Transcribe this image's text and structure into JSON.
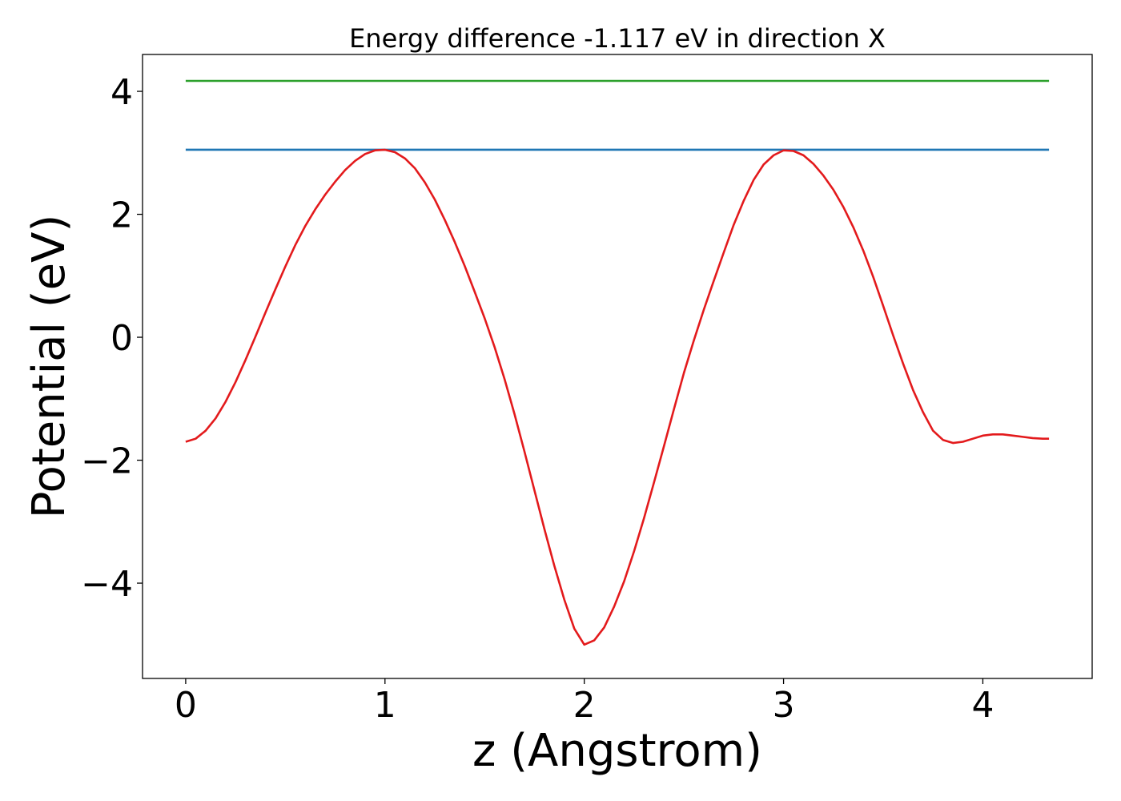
{
  "chart_data": {
    "type": "line",
    "title": "Energy difference -1.117 eV in direction X",
    "xlabel": "z (Angstrom)",
    "ylabel": "Potential (eV)",
    "xlim": [
      -0.2166,
      4.5486
    ],
    "ylim": [
      -5.55,
      4.6
    ],
    "xticks": [
      0,
      1,
      2,
      3,
      4
    ],
    "xtick_labels": [
      "0",
      "1",
      "2",
      "3",
      "4"
    ],
    "yticks": [
      -4,
      -2,
      0,
      2,
      4
    ],
    "ytick_labels": [
      "−4",
      "−2",
      "0",
      "2",
      "4"
    ],
    "grid": false,
    "legend": "none",
    "series": [
      {
        "color": "#2ca02c",
        "x": [
          0,
          4.332
        ],
        "y": [
          4.17,
          4.17
        ]
      },
      {
        "color": "#1f77b4",
        "x": [
          0,
          4.332
        ],
        "y": [
          3.05,
          3.05
        ]
      },
      {
        "color": "#e31a1c",
        "x": [
          0,
          0.05,
          0.1,
          0.15,
          0.2,
          0.25,
          0.3,
          0.35,
          0.4,
          0.45,
          0.5,
          0.55,
          0.6,
          0.65,
          0.7,
          0.75,
          0.8,
          0.85,
          0.9,
          0.95,
          1.0,
          1.05,
          1.1,
          1.15,
          1.2,
          1.25,
          1.3,
          1.35,
          1.4,
          1.45,
          1.5,
          1.55,
          1.6,
          1.65,
          1.7,
          1.75,
          1.8,
          1.85,
          1.9,
          1.95,
          2.0,
          2.05,
          2.1,
          2.15,
          2.2,
          2.25,
          2.3,
          2.35,
          2.4,
          2.45,
          2.5,
          2.55,
          2.6,
          2.65,
          2.7,
          2.75,
          2.8,
          2.85,
          2.9,
          2.95,
          3.0,
          3.05,
          3.1,
          3.15,
          3.2,
          3.25,
          3.3,
          3.35,
          3.4,
          3.45,
          3.5,
          3.55,
          3.6,
          3.65,
          3.7,
          3.75,
          3.8,
          3.85,
          3.9,
          3.95,
          4.0,
          4.05,
          4.1,
          4.15,
          4.2,
          4.25,
          4.3,
          4.332
        ],
        "y": [
          -1.7,
          -1.65,
          -1.52,
          -1.32,
          -1.05,
          -0.73,
          -0.37,
          0.01,
          0.4,
          0.78,
          1.15,
          1.5,
          1.81,
          2.08,
          2.32,
          2.53,
          2.72,
          2.87,
          2.98,
          3.04,
          3.05,
          3.01,
          2.91,
          2.75,
          2.52,
          2.24,
          1.91,
          1.55,
          1.16,
          0.74,
          0.31,
          -0.16,
          -0.68,
          -1.25,
          -1.86,
          -2.49,
          -3.12,
          -3.72,
          -4.27,
          -4.74,
          -5.0,
          -4.93,
          -4.72,
          -4.38,
          -3.97,
          -3.48,
          -2.94,
          -2.36,
          -1.77,
          -1.17,
          -0.58,
          -0.05,
          0.45,
          0.92,
          1.38,
          1.83,
          2.22,
          2.56,
          2.81,
          2.96,
          3.04,
          3.03,
          2.96,
          2.82,
          2.63,
          2.4,
          2.12,
          1.79,
          1.41,
          0.98,
          0.51,
          0.03,
          -0.43,
          -0.86,
          -1.22,
          -1.52,
          -1.67,
          -1.72,
          -1.7,
          -1.65,
          -1.6,
          -1.58,
          -1.58,
          -1.6,
          -1.62,
          -1.64,
          -1.65,
          -1.65
        ]
      }
    ]
  }
}
